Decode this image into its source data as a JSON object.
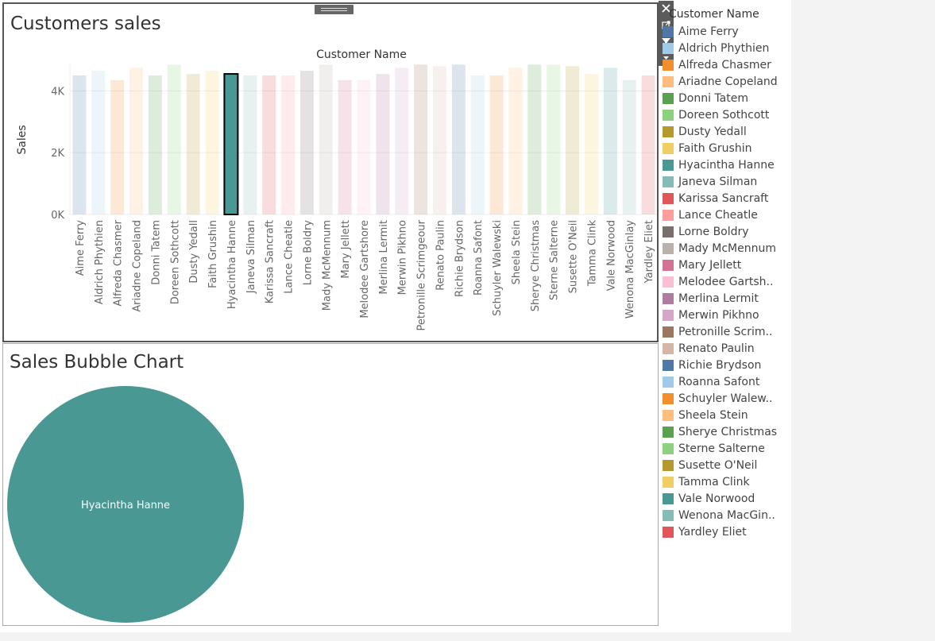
{
  "bar_panel": {
    "title": "Customers sales"
  },
  "bubble_panel": {
    "title": "Sales Bubble Chart",
    "bubble_label": "Hyacintha Hanne",
    "bubble_color": "#499894"
  },
  "legend": {
    "title": "Customer Name",
    "items": [
      {
        "label": "Aime Ferry",
        "color": "#4E79A7"
      },
      {
        "label": "Aldrich Phythien",
        "color": "#A0CBE8"
      },
      {
        "label": "Alfreda Chasmer",
        "color": "#F28E2B"
      },
      {
        "label": "Ariadne Copeland",
        "color": "#FFBE7D"
      },
      {
        "label": "Donni Tatem",
        "color": "#59A14F"
      },
      {
        "label": "Doreen Sothcott",
        "color": "#8CD17D"
      },
      {
        "label": "Dusty Yedall",
        "color": "#B6992D"
      },
      {
        "label": "Faith Grushin",
        "color": "#F1CE63"
      },
      {
        "label": "Hyacintha Hanne",
        "color": "#499894"
      },
      {
        "label": "Janeva Silman",
        "color": "#86BCB6"
      },
      {
        "label": "Karissa Sancraft",
        "color": "#E15759"
      },
      {
        "label": "Lance Cheatle",
        "color": "#FF9D9A"
      },
      {
        "label": "Lorne Boldry",
        "color": "#79706E"
      },
      {
        "label": "Mady McMennum",
        "color": "#BAB0AC"
      },
      {
        "label": "Mary Jellett",
        "color": "#D37295"
      },
      {
        "label": "Melodee Gartsh..",
        "color": "#FABFD2"
      },
      {
        "label": "Merlina Lermit",
        "color": "#B07AA1"
      },
      {
        "label": "Merwin Pikhno",
        "color": "#D4A6C8"
      },
      {
        "label": "Petronille Scrim..",
        "color": "#9D7660"
      },
      {
        "label": "Renato Paulin",
        "color": "#D7B5A6"
      },
      {
        "label": "Richie Brydson",
        "color": "#4E79A7"
      },
      {
        "label": "Roanna Safont",
        "color": "#A0CBE8"
      },
      {
        "label": "Schuyler Walew..",
        "color": "#F28E2B"
      },
      {
        "label": "Sheela Stein",
        "color": "#FFBE7D"
      },
      {
        "label": "Sherye Christmas",
        "color": "#59A14F"
      },
      {
        "label": "Sterne Salterne",
        "color": "#8CD17D"
      },
      {
        "label": "Susette O'Neil",
        "color": "#B6992D"
      },
      {
        "label": "Tamma Clink",
        "color": "#F1CE63"
      },
      {
        "label": "Vale Norwood",
        "color": "#499894"
      },
      {
        "label": "Wenona MacGin..",
        "color": "#86BCB6"
      },
      {
        "label": "Yardley Eliet",
        "color": "#E15759"
      }
    ]
  },
  "chart_data": {
    "type": "bar",
    "title": "Customers sales",
    "header": "Customer Name",
    "xlabel": "",
    "ylabel": "Sales",
    "ylim": [
      0,
      5400
    ],
    "yticks": [
      0,
      2000,
      4000
    ],
    "ytick_labels": [
      "0K",
      "2K",
      "4K"
    ],
    "selected": "Hyacintha Hanne",
    "categories": [
      "Aime Ferry",
      "Aldrich Phythien",
      "Alfreda Chasmer",
      "Ariadne Copeland",
      "Donni Tatem",
      "Doreen Sothcott",
      "Dusty Yedall",
      "Faith Grushin",
      "Hyacintha Hanne",
      "Janeva Silman",
      "Karissa Sancraft",
      "Lance Cheatle",
      "Lorne Boldry",
      "Mady McMennum",
      "Mary Jellett",
      "Melodee Gartshore",
      "Merlina Lermit",
      "Merwin Pikhno",
      "Petronille Scrimgeour",
      "Renato Paulin",
      "Richie Brydson",
      "Roanna Safont",
      "Schuyler Walewski",
      "Sheela Stein",
      "Sherye Christmas",
      "Sterne Salterne",
      "Susette O'Neil",
      "Tamma Clink",
      "Vale Norwood",
      "Wenona MacGinlay",
      "Yardley Eliet"
    ],
    "values": [
      4500,
      4650,
      4350,
      4750,
      4500,
      4850,
      4550,
      4650,
      4550,
      4500,
      4500,
      4500,
      4650,
      4850,
      4350,
      4350,
      4550,
      4750,
      4850,
      4800,
      4850,
      4500,
      4500,
      4750,
      4850,
      4850,
      4800,
      4550,
      4750,
      4350,
      4500
    ],
    "colors": [
      "#4E79A7",
      "#A0CBE8",
      "#F28E2B",
      "#FFBE7D",
      "#59A14F",
      "#8CD17D",
      "#B6992D",
      "#F1CE63",
      "#499894",
      "#86BCB6",
      "#E15759",
      "#FF9D9A",
      "#79706E",
      "#BAB0AC",
      "#D37295",
      "#FABFD2",
      "#B07AA1",
      "#D4A6C8",
      "#9D7660",
      "#D7B5A6",
      "#4E79A7",
      "#A0CBE8",
      "#F28E2B",
      "#FFBE7D",
      "#59A14F",
      "#8CD17D",
      "#B6992D",
      "#F1CE63",
      "#499894",
      "#86BCB6",
      "#E15759"
    ]
  }
}
